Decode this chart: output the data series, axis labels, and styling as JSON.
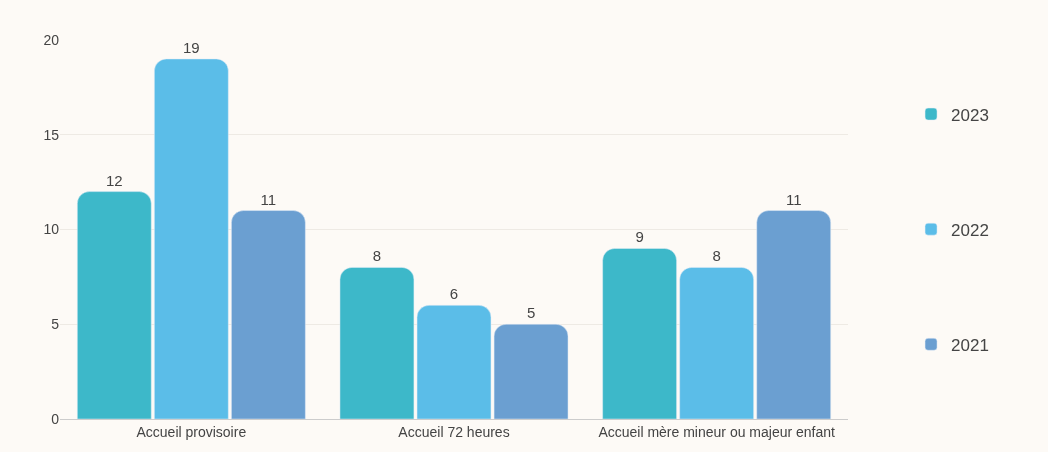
{
  "chart_data": {
    "type": "bar",
    "categories": [
      "Accueil provisoire",
      "Accueil 72 heures",
      "Accueil mère mineur ou majeur enfant"
    ],
    "series": [
      {
        "name": "2023",
        "color": "#3db8c9",
        "values": [
          12,
          8,
          9
        ]
      },
      {
        "name": "2022",
        "color": "#5bbde8",
        "values": [
          19,
          6,
          8
        ]
      },
      {
        "name": "2021",
        "color": "#6b9fd1",
        "values": [
          11,
          5,
          11
        ]
      }
    ],
    "ylim": [
      0,
      20
    ],
    "yticks": [
      0,
      5,
      10,
      15,
      20
    ],
    "grid": "y",
    "legend": "right",
    "data_labels": true
  }
}
